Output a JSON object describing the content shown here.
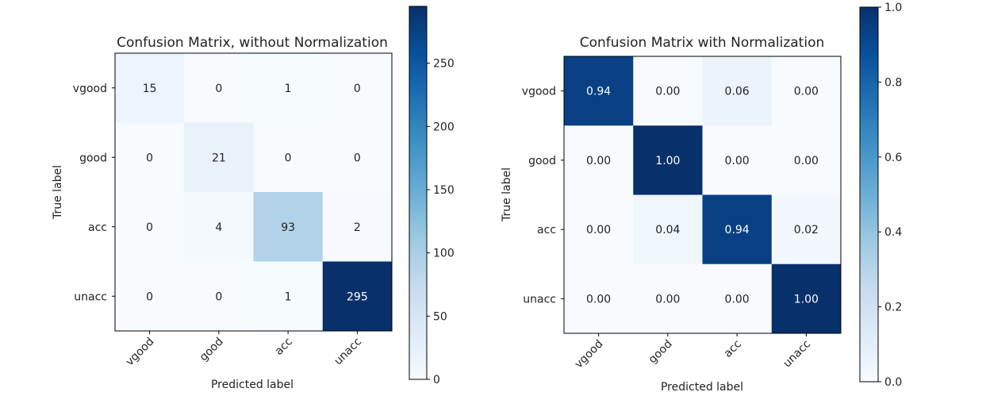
{
  "chart_data": [
    {
      "type": "heatmap",
      "title": "Confusion Matrix, without Normalization",
      "xlabel": "Predicted label",
      "ylabel": "True label",
      "x_categories": [
        "vgood",
        "good",
        "acc",
        "unacc"
      ],
      "y_categories": [
        "vgood",
        "good",
        "acc",
        "unacc"
      ],
      "values": [
        [
          15,
          0,
          1,
          0
        ],
        [
          0,
          21,
          0,
          0
        ],
        [
          0,
          4,
          93,
          2
        ],
        [
          0,
          0,
          1,
          295
        ]
      ],
      "cell_labels": [
        [
          "15",
          "0",
          "1",
          "0"
        ],
        [
          "0",
          "21",
          "0",
          "0"
        ],
        [
          "0",
          "4",
          "93",
          "2"
        ],
        [
          "0",
          "0",
          "1",
          "295"
        ]
      ],
      "colormap": "Blues",
      "vmin": 0,
      "vmax": 295,
      "colorbar_ticks": [
        0,
        50,
        100,
        150,
        200,
        250
      ],
      "colorbar_labels": [
        "0",
        "50",
        "100",
        "150",
        "200",
        "250"
      ]
    },
    {
      "type": "heatmap",
      "title": "Confusion Matrix with Normalization",
      "xlabel": "Predicted label",
      "ylabel": "True label",
      "x_categories": [
        "vgood",
        "good",
        "acc",
        "unacc"
      ],
      "y_categories": [
        "vgood",
        "good",
        "acc",
        "unacc"
      ],
      "values": [
        [
          0.94,
          0.0,
          0.06,
          0.0
        ],
        [
          0.0,
          1.0,
          0.0,
          0.0
        ],
        [
          0.0,
          0.04,
          0.94,
          0.02
        ],
        [
          0.0,
          0.0,
          0.0,
          1.0
        ]
      ],
      "cell_labels": [
        [
          "0.94",
          "0.00",
          "0.06",
          "0.00"
        ],
        [
          "0.00",
          "1.00",
          "0.00",
          "0.00"
        ],
        [
          "0.00",
          "0.04",
          "0.94",
          "0.02"
        ],
        [
          "0.00",
          "0.00",
          "0.00",
          "1.00"
        ]
      ],
      "colormap": "Blues",
      "vmin": 0,
      "vmax": 1,
      "colorbar_ticks": [
        0,
        0.2,
        0.4,
        0.6,
        0.8,
        1.0
      ],
      "colorbar_labels": [
        "0.0",
        "0.2",
        "0.4",
        "0.6",
        "0.8",
        "1.0"
      ]
    }
  ]
}
